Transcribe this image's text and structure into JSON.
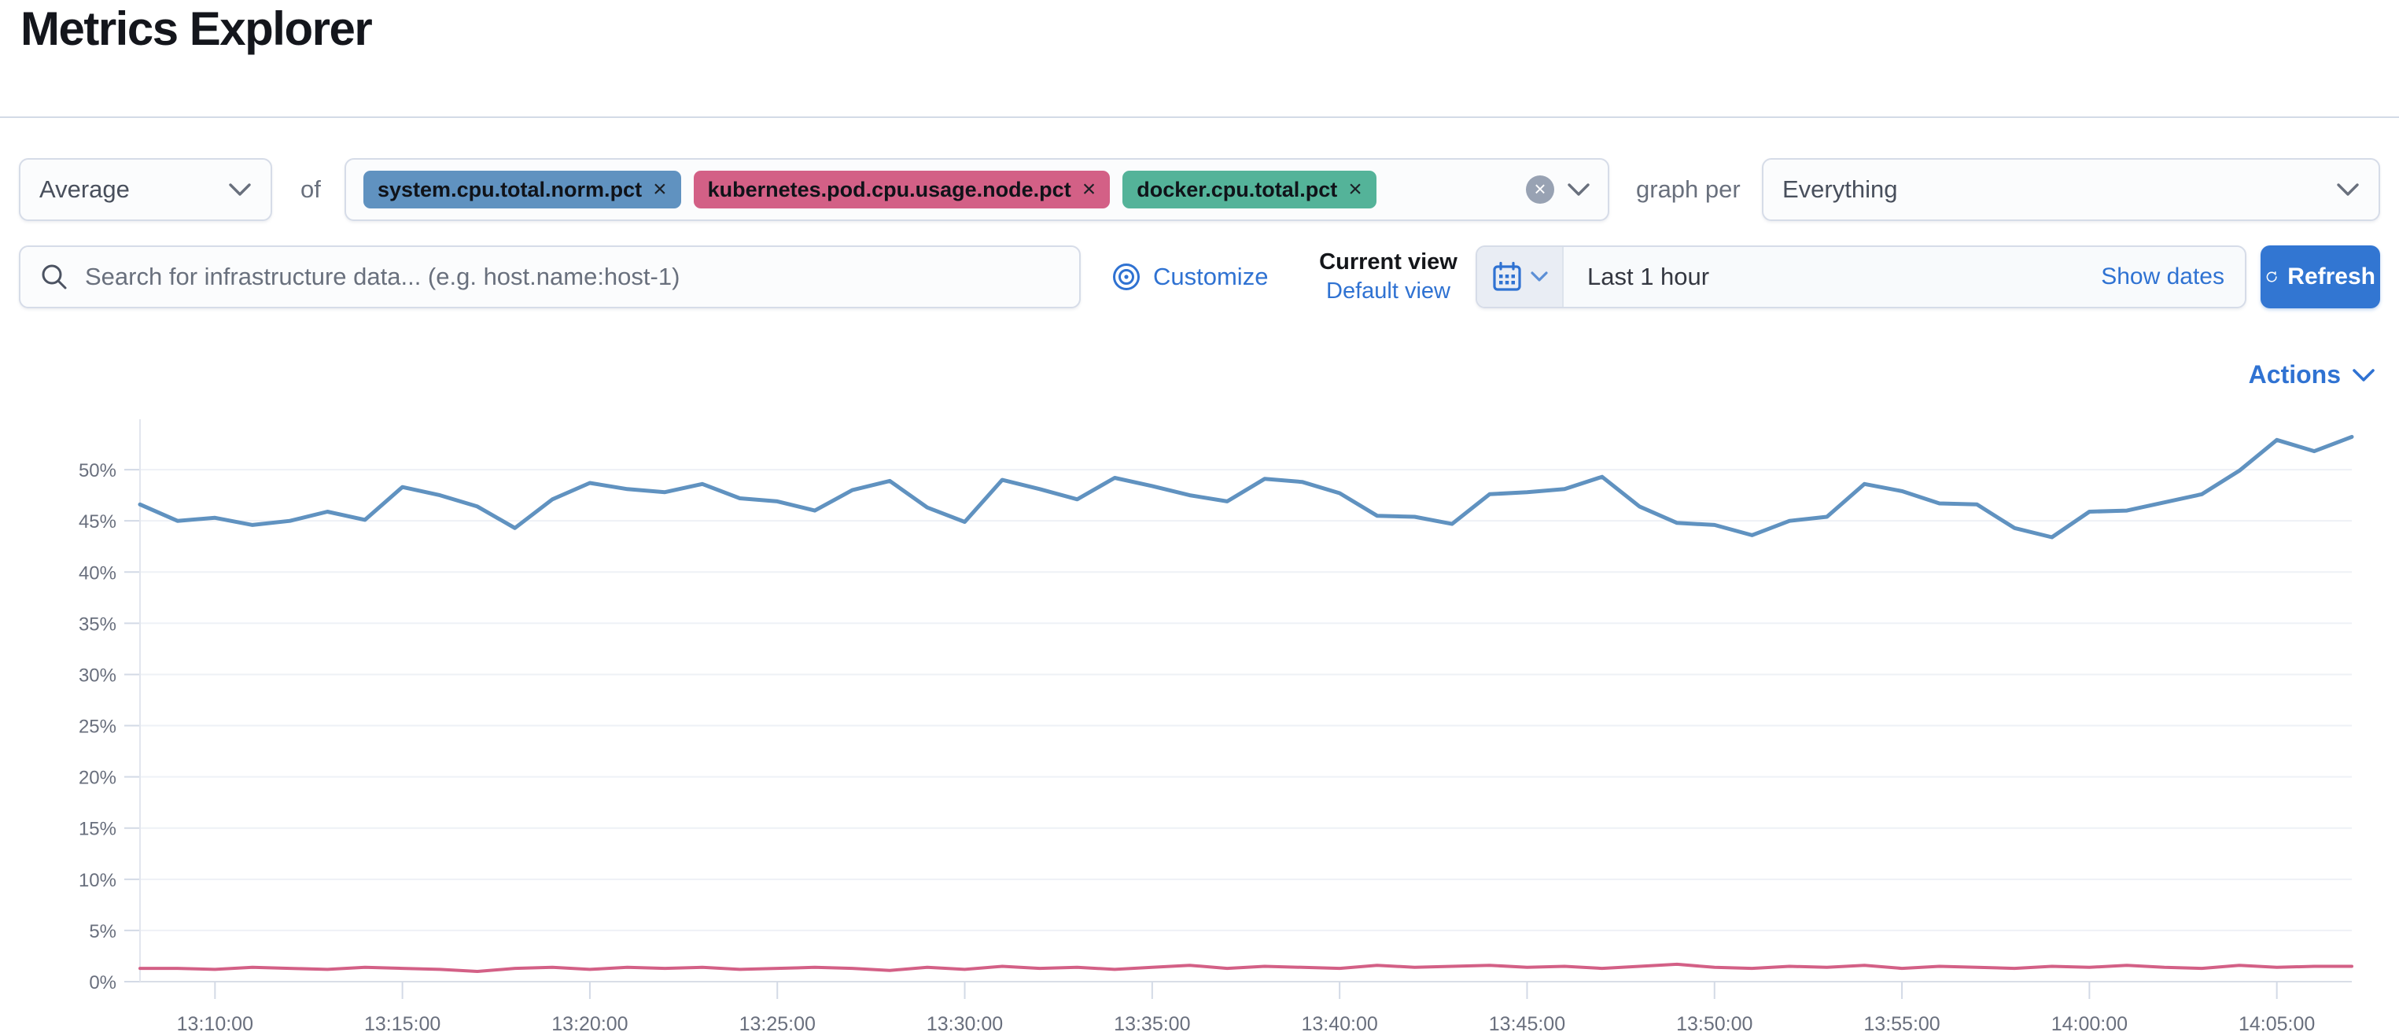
{
  "page": {
    "title": "Metrics Explorer"
  },
  "colors": {
    "accent": "#2F72D2",
    "refresh_button": "#3276D2",
    "axis_label": "#696F7D",
    "gridline": "#EEF1F6",
    "axis_line": "#D9DEE7"
  },
  "toolbar": {
    "aggregation": {
      "value": "Average"
    },
    "of_label": "of",
    "metrics": [
      {
        "label": "system.cpu.total.norm.pct",
        "color": "#6092C0"
      },
      {
        "label": "kubernetes.pod.cpu.usage.node.pct",
        "color": "#D36086"
      },
      {
        "label": "docker.cpu.total.pct",
        "color": "#54B399"
      }
    ],
    "graph_per_label": "graph per",
    "group_by": {
      "value": "Everything"
    }
  },
  "filter_bar": {
    "search": {
      "placeholder": "Search for infrastructure data... (e.g. host.name:host-1)",
      "value": ""
    },
    "customize_label": "Customize",
    "current_view_label": "Current view",
    "default_view_label": "Default view",
    "datepicker": {
      "value": "Last 1 hour",
      "show_dates_label": "Show dates"
    },
    "refresh_label": "Refresh"
  },
  "chart_header": {
    "actions_label": "Actions"
  },
  "chart_data": {
    "type": "line",
    "title": "",
    "xlabel": "",
    "ylabel": "",
    "legend": "none",
    "grid": "horizontal",
    "ylim": [
      0,
      54
    ],
    "yticks": [
      0,
      5,
      10,
      15,
      20,
      25,
      30,
      35,
      40,
      45,
      50
    ],
    "ytick_suffix": "%",
    "x_start": "13:08:00",
    "interval_seconds": 60,
    "x_tick_labels": [
      "13:10:00",
      "13:15:00",
      "13:20:00",
      "13:25:00",
      "13:30:00",
      "13:35:00",
      "13:40:00",
      "13:45:00",
      "13:50:00",
      "13:55:00",
      "14:00:00",
      "14:05:00"
    ],
    "series": [
      {
        "name": "system.cpu.total.norm.pct",
        "color": "#6092C0",
        "values": [
          46.6,
          45.0,
          45.3,
          44.6,
          45.0,
          45.9,
          45.1,
          48.3,
          47.5,
          46.4,
          44.3,
          47.1,
          48.7,
          48.1,
          47.8,
          48.6,
          47.2,
          46.9,
          46.0,
          48.0,
          48.9,
          46.3,
          44.9,
          49.0,
          48.1,
          47.1,
          49.2,
          48.4,
          47.5,
          46.9,
          49.1,
          48.8,
          47.7,
          45.5,
          45.4,
          44.7,
          47.6,
          47.8,
          48.1,
          49.3,
          46.4,
          44.8,
          44.6,
          43.6,
          45.0,
          45.4,
          48.6,
          47.9,
          46.7,
          46.6,
          44.3,
          43.4,
          45.9,
          46.0,
          46.8,
          47.6,
          49.9,
          52.9,
          51.8,
          53.2
        ]
      },
      {
        "name": "kubernetes.pod.cpu.usage.node.pct",
        "color": "#D36086",
        "values": [
          1.3,
          1.3,
          1.2,
          1.4,
          1.3,
          1.2,
          1.4,
          1.3,
          1.2,
          1.0,
          1.3,
          1.4,
          1.2,
          1.4,
          1.3,
          1.4,
          1.2,
          1.3,
          1.4,
          1.3,
          1.1,
          1.4,
          1.2,
          1.5,
          1.3,
          1.4,
          1.2,
          1.4,
          1.6,
          1.3,
          1.5,
          1.4,
          1.3,
          1.6,
          1.4,
          1.5,
          1.6,
          1.4,
          1.5,
          1.3,
          1.5,
          1.7,
          1.4,
          1.3,
          1.5,
          1.4,
          1.6,
          1.3,
          1.5,
          1.4,
          1.3,
          1.5,
          1.4,
          1.6,
          1.4,
          1.3,
          1.6,
          1.4,
          1.5,
          1.5
        ]
      }
    ]
  }
}
